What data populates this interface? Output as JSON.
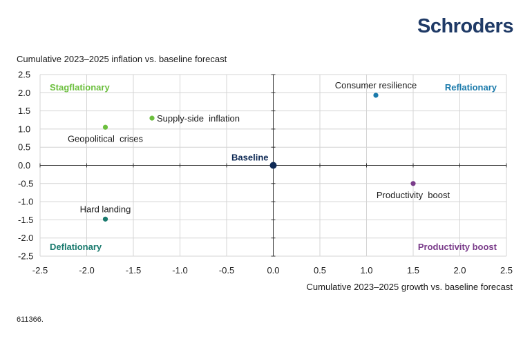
{
  "brand": {
    "name": "Schroders",
    "color": "#1f3a66"
  },
  "footnote": "611366.",
  "chart_data": {
    "type": "scatter",
    "title": "",
    "ylabel": "Cumulative 2023–2025 inflation vs. baseline forecast",
    "xlabel": "Cumulative 2023–2025 growth vs. baseline forecast",
    "xlim": [
      -2.5,
      2.5
    ],
    "ylim": [
      -2.5,
      2.5
    ],
    "xticks": [
      -2.5,
      -2.0,
      -1.5,
      -1.0,
      -0.5,
      0.0,
      0.5,
      1.0,
      1.5,
      2.0,
      2.5
    ],
    "yticks": [
      2.5,
      2.0,
      1.5,
      1.0,
      0.5,
      0.0,
      -0.5,
      -1.0,
      -1.5,
      -2.0,
      -2.5
    ],
    "grid": true,
    "points": [
      {
        "label": "Supply-side  inflation",
        "x": -1.3,
        "y": 1.3,
        "color": "#6cbf3e",
        "label_pos": "right"
      },
      {
        "label": "Geopolitical  crises",
        "x": -1.8,
        "y": 1.05,
        "color": "#6cbf3e",
        "label_pos": "below"
      },
      {
        "label": "Consumer resilience",
        "x": 1.1,
        "y": 1.93,
        "color": "#1a7aab",
        "label_pos": "above"
      },
      {
        "label": "Baseline",
        "x": 0.0,
        "y": 0.0,
        "color": "#0f2a55",
        "label_pos": "above-left",
        "bold": true
      },
      {
        "label": "Productivity  boost",
        "x": 1.5,
        "y": -0.5,
        "color": "#7a3c8a",
        "label_pos": "below"
      },
      {
        "label": "Hard landing",
        "x": -1.8,
        "y": -1.48,
        "color": "#1a7a6e",
        "label_pos": "above"
      }
    ],
    "quadrants": [
      {
        "label": "Stagflationary",
        "position": "top-left",
        "color": "#6cbf3e"
      },
      {
        "label": "Reflationary",
        "position": "top-right",
        "color": "#1a7aab"
      },
      {
        "label": "Deflationary",
        "position": "bottom-left",
        "color": "#1a7a6e"
      },
      {
        "label": "Productivity boost",
        "position": "bottom-right",
        "color": "#7a3c8a"
      }
    ]
  }
}
